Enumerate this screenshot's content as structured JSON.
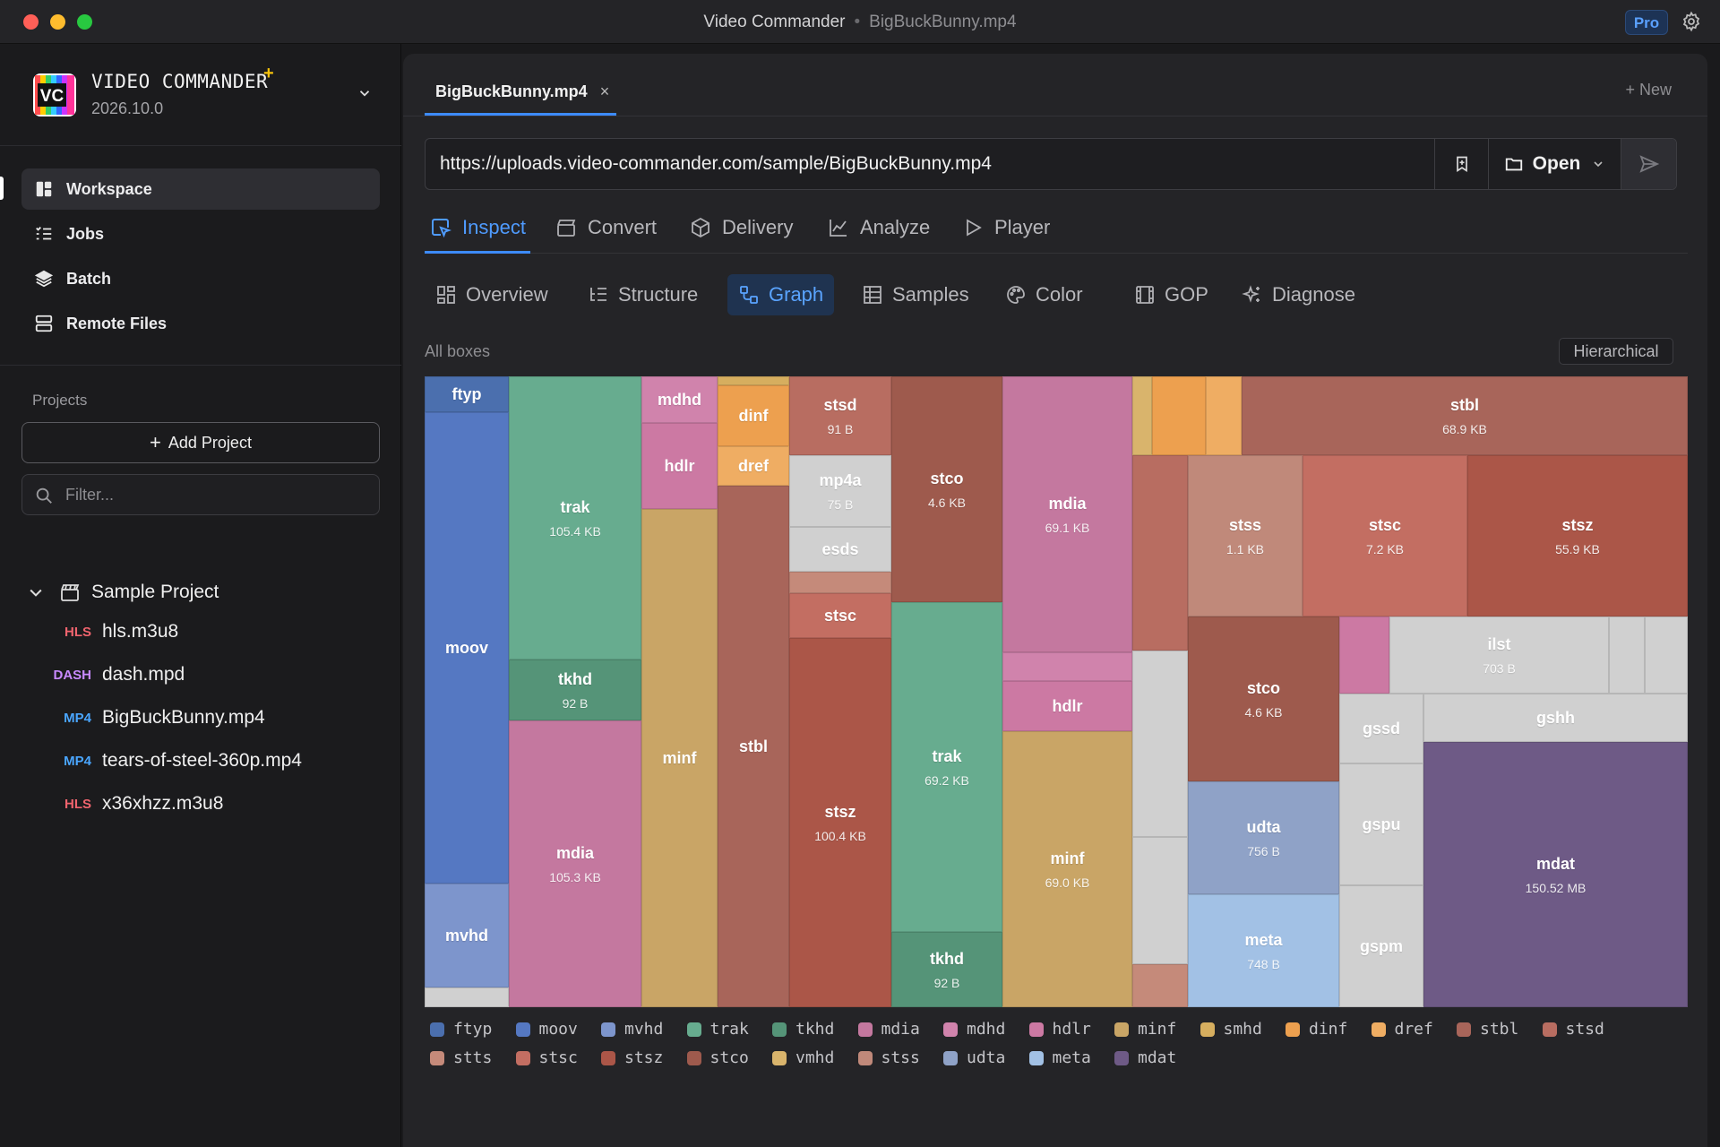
{
  "window": {
    "title": "Video Commander",
    "file": "BigBuckBunny.mp4",
    "pro_badge": "Pro"
  },
  "sidebar": {
    "app_name": "VIDEO COMMANDER",
    "app_name_star": "+",
    "version": "2026.10.0",
    "logo_text": "VC",
    "nav": [
      {
        "label": "Workspace",
        "icon": "layout-icon",
        "active": true
      },
      {
        "label": "Jobs",
        "icon": "list-icon"
      },
      {
        "label": "Batch",
        "icon": "layers-icon"
      },
      {
        "label": "Remote Files",
        "icon": "server-icon"
      }
    ],
    "projects_label": "Projects",
    "add_project_label": "Add Project",
    "filter_placeholder": "Filter...",
    "project": {
      "name": "Sample Project",
      "files": [
        {
          "tag": "HLS",
          "name": "hls.m3u8"
        },
        {
          "tag": "DASH",
          "name": "dash.mpd"
        },
        {
          "tag": "MP4",
          "name": "BigBuckBunny.mp4"
        },
        {
          "tag": "MP4",
          "name": "tears-of-steel-360p.mp4"
        },
        {
          "tag": "HLS",
          "name": "x36xhzz.m3u8"
        }
      ]
    }
  },
  "main": {
    "file_tab": "BigBuckBunny.mp4",
    "file_tab_close": "×",
    "new_tab": "+ New",
    "url": "https://uploads.video-commander.com/sample/BigBuckBunny.mp4",
    "open_label": "Open",
    "tabs": [
      "Inspect",
      "Convert",
      "Delivery",
      "Analyze",
      "Player"
    ],
    "active_tab": "Inspect",
    "subtabs": [
      "Overview",
      "Structure",
      "Graph",
      "Samples",
      "Color",
      "GOP",
      "Diagnose"
    ],
    "active_subtab": "Graph",
    "section_label": "All boxes",
    "layout_button": "Hierarchical"
  },
  "colors": {
    "ftyp": "#4b6fae",
    "moov": "#5578c2",
    "mvhd": "#7d95cc",
    "trak": "#67ac8f",
    "tkhd": "#559478",
    "mdia": "#c4789f",
    "mdhd": "#d083ac",
    "hdlr": "#cc79a3",
    "minf": "#c9a566",
    "smhd": "#d6ae5f",
    "dinf": "#eda04f",
    "dref": "#efad63",
    "stbl": "#a8655a",
    "stsd": "#b86d61",
    "stts": "#c58a7a",
    "stsc": "#c36e62",
    "stsz": "#ab5648",
    "stco": "#9e5a4d",
    "vmhd": "#d9b46c",
    "stss": "#c0897a",
    "udta": "#8fa2c7",
    "meta": "#a2c1e5",
    "mdat": "#6e5a86",
    "other": "#d0d0d0",
    "accent": "#3d8bff"
  },
  "treemap_boxes": [
    {
      "name": "ftyp",
      "size": "",
      "type": "ftyp"
    },
    {
      "name": "moov",
      "size": "",
      "type": "moov"
    },
    {
      "name": "mvhd",
      "size": "",
      "type": "mvhd"
    },
    {
      "name": "",
      "size": "",
      "type": "other"
    },
    {
      "name": "trak",
      "size": "105.4 KB",
      "type": "trak"
    },
    {
      "name": "tkhd",
      "size": "92 B",
      "type": "tkhd"
    },
    {
      "name": "mdia",
      "size": "105.3 KB",
      "type": "mdia"
    },
    {
      "name": "mdhd",
      "size": "",
      "type": "mdhd"
    },
    {
      "name": "hdlr",
      "size": "",
      "type": "hdlr"
    },
    {
      "name": "minf",
      "size": "",
      "type": "minf"
    },
    {
      "name": "",
      "size": "",
      "type": "smhd"
    },
    {
      "name": "dinf",
      "size": "",
      "type": "dinf"
    },
    {
      "name": "dref",
      "size": "",
      "type": "dref"
    },
    {
      "name": "stbl",
      "size": "",
      "type": "stbl"
    },
    {
      "name": "stsd",
      "size": "91 B",
      "type": "stsd"
    },
    {
      "name": "mp4a",
      "size": "75 B",
      "type": "other"
    },
    {
      "name": "esds",
      "size": "",
      "type": "other"
    },
    {
      "name": "",
      "size": "",
      "type": "stts"
    },
    {
      "name": "stsc",
      "size": "",
      "type": "stsc"
    },
    {
      "name": "stsz",
      "size": "100.4 KB",
      "type": "stsz"
    },
    {
      "name": "stco",
      "size": "4.6 KB",
      "type": "stco"
    },
    {
      "name": "trak",
      "size": "69.2 KB",
      "type": "trak"
    },
    {
      "name": "tkhd",
      "size": "92 B",
      "type": "tkhd"
    },
    {
      "name": "mdia",
      "size": "69.1 KB",
      "type": "mdia"
    },
    {
      "name": "",
      "size": "",
      "type": "mdhd"
    },
    {
      "name": "hdlr",
      "size": "",
      "type": "hdlr"
    },
    {
      "name": "minf",
      "size": "69.0 KB",
      "type": "minf"
    },
    {
      "name": "",
      "size": "",
      "type": "vmhd"
    },
    {
      "name": "",
      "size": "",
      "type": "dinf"
    },
    {
      "name": "",
      "size": "",
      "type": "dref"
    },
    {
      "name": "stbl",
      "size": "68.9 KB",
      "type": "stbl"
    },
    {
      "name": "",
      "size": "",
      "type": "stsd"
    },
    {
      "name": "",
      "size": "",
      "type": "other"
    },
    {
      "name": "",
      "size": "",
      "type": "other"
    },
    {
      "name": "",
      "size": "",
      "type": "stts"
    },
    {
      "name": "stss",
      "size": "1.1 KB",
      "type": "stss"
    },
    {
      "name": "stsc",
      "size": "7.2 KB",
      "type": "stsc"
    },
    {
      "name": "stsz",
      "size": "55.9 KB",
      "type": "stsz"
    },
    {
      "name": "stco",
      "size": "4.6 KB",
      "type": "stco"
    },
    {
      "name": "udta",
      "size": "756 B",
      "type": "udta"
    },
    {
      "name": "meta",
      "size": "748 B",
      "type": "meta"
    },
    {
      "name": "",
      "size": "",
      "type": "hdlr"
    },
    {
      "name": "ilst",
      "size": "703 B",
      "type": "other"
    },
    {
      "name": "",
      "size": "",
      "type": "other"
    },
    {
      "name": "",
      "size": "",
      "type": "other"
    },
    {
      "name": "gssd",
      "size": "",
      "type": "other"
    },
    {
      "name": "gshh",
      "size": "",
      "type": "other"
    },
    {
      "name": "gspu",
      "size": "",
      "type": "other"
    },
    {
      "name": "gspm",
      "size": "",
      "type": "other"
    },
    {
      "name": "mdat",
      "size": "150.52 MB",
      "type": "mdat"
    }
  ],
  "legend": [
    "ftyp",
    "moov",
    "mvhd",
    "trak",
    "tkhd",
    "mdia",
    "mdhd",
    "hdlr",
    "minf",
    "smhd",
    "dinf",
    "dref",
    "stbl",
    "stsd",
    "stts",
    "stsc",
    "stsz",
    "stco",
    "vmhd",
    "stss",
    "udta",
    "meta",
    "mdat"
  ]
}
